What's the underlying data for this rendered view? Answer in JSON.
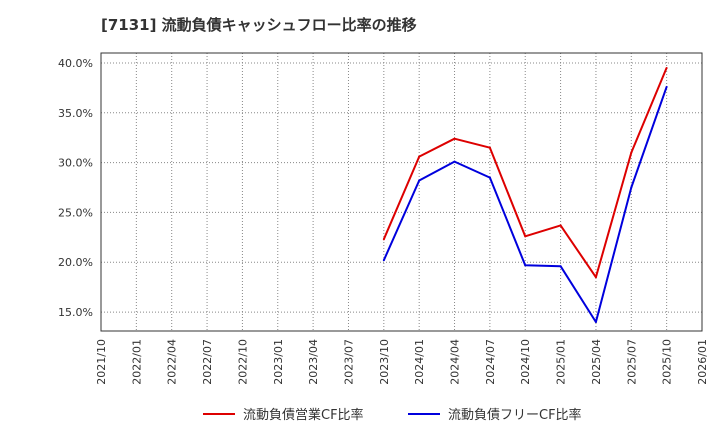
{
  "chart_data": {
    "type": "line",
    "title": "[7131]  流動負債キャッシュフロー比率の推移",
    "xlabel": "",
    "ylabel": "",
    "x_ticks": [
      "2021/10",
      "2022/01",
      "2022/04",
      "2022/07",
      "2022/10",
      "2023/01",
      "2023/04",
      "2023/07",
      "2023/10",
      "2024/01",
      "2024/04",
      "2024/07",
      "2024/10",
      "2025/01",
      "2025/04",
      "2025/07",
      "2025/10",
      "2026/01"
    ],
    "y_ticks": [
      "15.0%",
      "20.0%",
      "25.0%",
      "30.0%",
      "35.0%",
      "40.0%"
    ],
    "y_tick_values": [
      15,
      20,
      25,
      30,
      35,
      40
    ],
    "ylim": [
      13.1,
      41.0
    ],
    "grid": true,
    "legend_position": "bottom",
    "series": [
      {
        "name": "流動負債営業CF比率",
        "color": "#dd0000",
        "x": [
          "2023/10",
          "2024/01",
          "2024/04",
          "2024/07",
          "2024/10",
          "2025/01",
          "2025/04",
          "2025/07",
          "2025/10"
        ],
        "values": [
          22.3,
          30.6,
          32.4,
          31.5,
          22.6,
          23.7,
          18.5,
          31.0,
          39.5
        ]
      },
      {
        "name": "流動負債フリーCF比率",
        "color": "#0000dd",
        "x": [
          "2023/10",
          "2024/01",
          "2024/04",
          "2024/07",
          "2024/10",
          "2025/01",
          "2025/04",
          "2025/07",
          "2025/10"
        ],
        "values": [
          20.2,
          28.2,
          30.1,
          28.5,
          19.7,
          19.6,
          14.0,
          27.5,
          37.6
        ]
      }
    ]
  }
}
